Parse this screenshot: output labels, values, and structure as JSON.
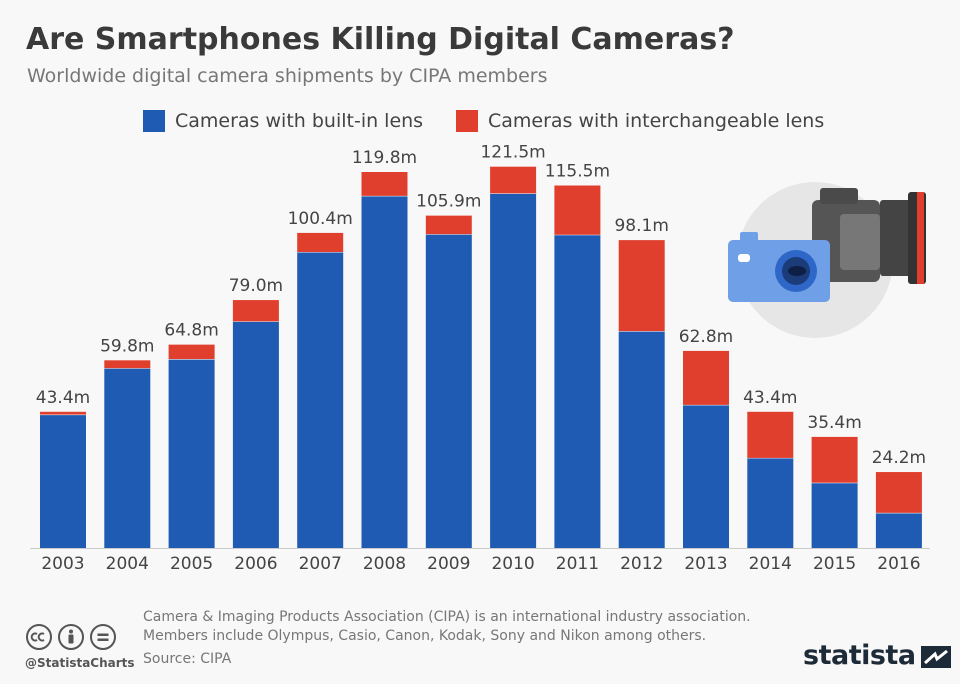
{
  "header": {
    "title": "Are Smartphones Killing Digital Cameras?",
    "subtitle": "Worldwide digital camera shipments by CIPA members"
  },
  "legend": {
    "builtin_label": "Cameras with built-in lens",
    "interchangeable_label": "Cameras with interchangeable lens"
  },
  "colors": {
    "builtin": "#1f5bb3",
    "interchangeable": "#e03f2e",
    "axis": "#cccccc",
    "label": "#444444"
  },
  "chart_data": {
    "type": "bar",
    "stacked": true,
    "categories": [
      "2003",
      "2004",
      "2005",
      "2006",
      "2007",
      "2008",
      "2009",
      "2010",
      "2011",
      "2012",
      "2013",
      "2014",
      "2015",
      "2016"
    ],
    "series": [
      {
        "name": "Cameras with built-in lens",
        "values": [
          42.5,
          57.3,
          60.2,
          72.2,
          94.3,
          112.2,
          100.0,
          113.0,
          99.8,
          69.1,
          45.6,
          28.7,
          20.8,
          11.2
        ]
      },
      {
        "name": "Cameras with interchangeable lens",
        "values": [
          0.9,
          2.5,
          4.6,
          6.8,
          6.1,
          7.6,
          5.9,
          8.5,
          15.7,
          29.0,
          17.2,
          14.7,
          14.6,
          13.0
        ]
      }
    ],
    "totals": [
      43.4,
      59.8,
      64.8,
      79.0,
      100.4,
      119.8,
      105.9,
      121.5,
      115.5,
      98.1,
      62.8,
      43.4,
      35.4,
      24.2
    ],
    "total_labels": [
      "43.4m",
      "59.8m",
      "64.8m",
      "79.0m",
      "100.4m",
      "119.8m",
      "105.9m",
      "121.5m",
      "115.5m",
      "98.1m",
      "62.8m",
      "43.4m",
      "35.4m",
      "24.2m"
    ],
    "ylim": [
      0,
      130
    ],
    "grid": false,
    "legend_position": "top"
  },
  "footer": {
    "note_line1": "Camera & Imaging Products Association (CIPA) is an international industry association.",
    "note_line2": "Members include Olympus, Casio, Canon, Kodak, Sony and Nikon among others.",
    "source": "Source: CIPA",
    "handle": "@StatistaCharts",
    "brand": "statista",
    "license_icons": [
      "cc-icon",
      "by-icon",
      "nd-icon"
    ]
  }
}
